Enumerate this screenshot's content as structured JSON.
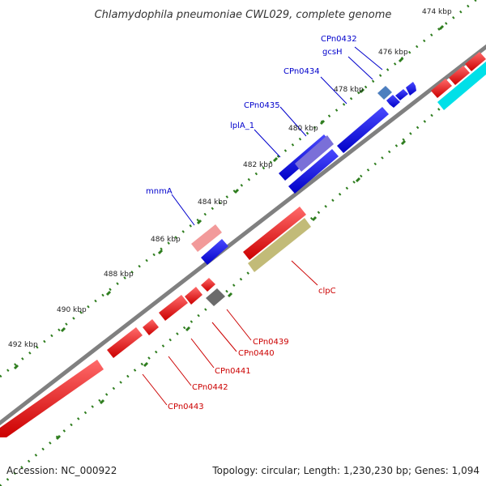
{
  "title": "Chlamydophila pneumoniae CWL029, complete genome",
  "footer": {
    "accession": "Accession: NC_000922",
    "summary": "Topology: circular; Length: 1,230,230 bp; Genes: 1,094"
  },
  "colors": {
    "backbone": "#8a8a8a",
    "tick": "#2e7d1e",
    "forward": "#0000ee",
    "reverse": "#ee0000",
    "forward_label": "#0000cc",
    "reverse_label": "#cc0000",
    "highlight_purple": "#7a6fd8",
    "highlight_pink": "#f29a9a",
    "highlight_olive": "#c2bb78",
    "highlight_steel": "#4d7fbf",
    "highlight_gray": "#6b6b6b",
    "highlight_cyan": "#00e0e8"
  },
  "scale": {
    "tick_labels": [
      "474 kbp",
      "476 kbp",
      "478 kbp",
      "480 kbp",
      "482 kbp",
      "484 kbp",
      "486 kbp",
      "488 kbp",
      "490 kbp",
      "492 kbp"
    ]
  },
  "forward_labels": [
    "CPn0432",
    "gcsH",
    "CPn0434",
    "CPn0435",
    "lplA_1",
    "mnmA"
  ],
  "reverse_labels": [
    "clpC",
    "CPn0439",
    "CPn0440",
    "CPn0441",
    "CPn0442",
    "CPn0443"
  ]
}
